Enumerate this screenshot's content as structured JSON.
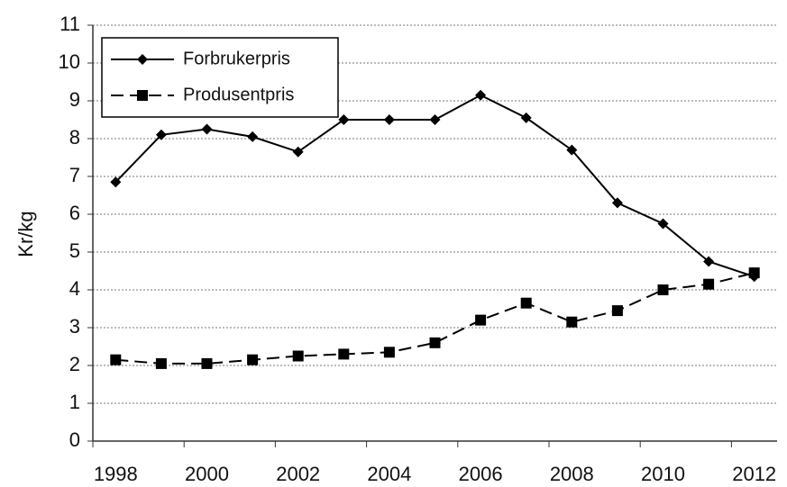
{
  "chart_data": {
    "type": "line",
    "y_label": "Kr/kg",
    "categories": [
      "1998",
      null,
      "2000",
      null,
      "2002",
      null,
      "2004",
      null,
      "2006",
      null,
      "2008",
      null,
      "2010",
      null,
      "2012"
    ],
    "series": [
      {
        "name": "Forbrukerpris",
        "color": "#000000",
        "line_style": "solid",
        "marker": "diamond",
        "values": [
          6.85,
          8.1,
          8.25,
          8.05,
          7.65,
          8.5,
          8.5,
          8.5,
          9.15,
          8.55,
          7.7,
          6.3,
          5.75,
          4.75,
          4.35
        ]
      },
      {
        "name": "Produsentpris",
        "color": "#000000",
        "line_style": "dashed",
        "marker": "square",
        "values": [
          2.15,
          2.05,
          2.05,
          2.15,
          2.25,
          2.3,
          2.35,
          2.6,
          3.2,
          3.65,
          3.15,
          3.45,
          4.0,
          4.15,
          4.45
        ]
      }
    ],
    "ylim": [
      0,
      11
    ],
    "yticks": [
      0,
      1,
      2,
      3,
      4,
      5,
      6,
      7,
      8,
      9,
      10,
      11
    ],
    "grid": true,
    "legend": "upper left"
  }
}
